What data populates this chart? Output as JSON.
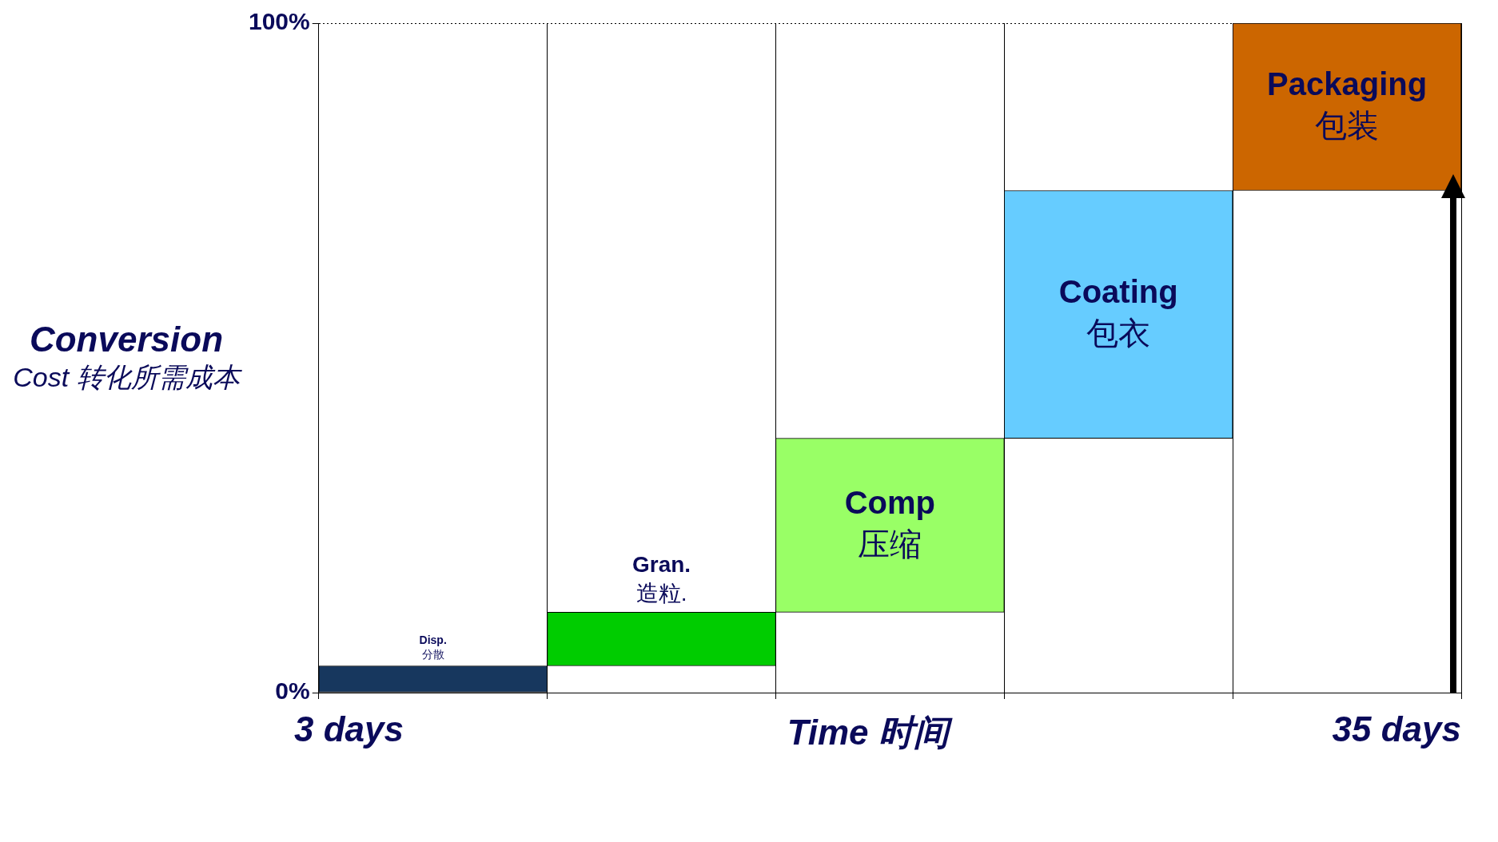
{
  "chart_data": {
    "type": "bar",
    "categories": [
      "Disp. 分散",
      "Gran. 造粒.",
      "Comp 压缩",
      "Coating 包衣",
      "Packaging 包装"
    ],
    "values": [
      4,
      8,
      26,
      37,
      25
    ],
    "base": [
      0,
      4,
      12,
      38,
      75
    ],
    "colors": [
      "#17375e",
      "#00cc00",
      "#99ff66",
      "#66ccff",
      "#cc6600"
    ],
    "ylim": [
      0,
      100
    ],
    "yticks": [
      {
        "value": 0,
        "label": "0%"
      },
      {
        "value": 100,
        "label": "100%"
      }
    ],
    "ylabel": "Conversion Cost 转化所需成本",
    "xlabel": "Time 时间",
    "annotations": [
      "3 days",
      "35 days"
    ],
    "grid": true,
    "legend": false
  }
}
